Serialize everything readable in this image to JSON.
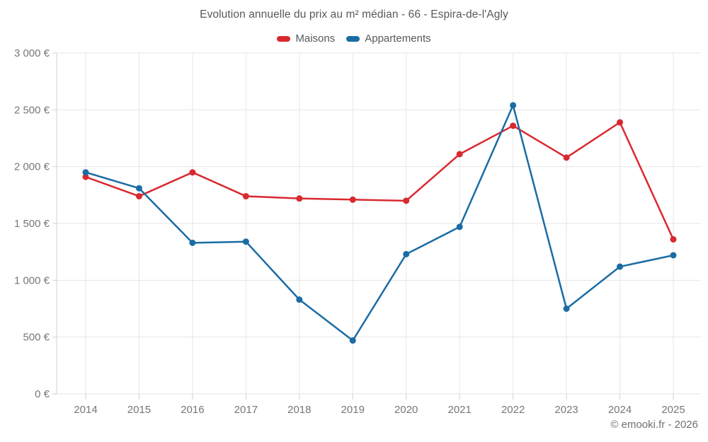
{
  "page": {
    "copyright": "© emooki.fr - 2026"
  },
  "chart_data": {
    "type": "line",
    "title": "Evolution annuelle du prix au m² médian - 66 - Espira-de-l'Agly",
    "categories": [
      "2014",
      "2015",
      "2016",
      "2017",
      "2018",
      "2019",
      "2020",
      "2021",
      "2022",
      "2023",
      "2024",
      "2025"
    ],
    "series": [
      {
        "name": "Maisons",
        "color": "#d8292f",
        "values": [
          1910,
          1740,
          1950,
          1740,
          1720,
          1710,
          1700,
          2110,
          2360,
          2080,
          2390,
          1360
        ]
      },
      {
        "name": "Appartements",
        "color": "#1a6ca4",
        "values": [
          1950,
          1810,
          1330,
          1340,
          830,
          470,
          1230,
          1470,
          2540,
          750,
          1120,
          1220
        ]
      }
    ],
    "ylabel": "",
    "xlabel": "",
    "ylim": [
      0,
      3000
    ],
    "y_ticks": [
      0,
      500,
      1000,
      1500,
      2000,
      2500,
      3000
    ],
    "y_tick_labels": [
      "0 €",
      "500 €",
      "1 000 €",
      "1 500 €",
      "2 000 €",
      "2 500 €",
      "3 000 €"
    ],
    "grid": true,
    "legend_position": "top",
    "grid_color": "#e6e6e6",
    "axis_color": "#d2d2d2",
    "tick_label_color": "#757779"
  }
}
